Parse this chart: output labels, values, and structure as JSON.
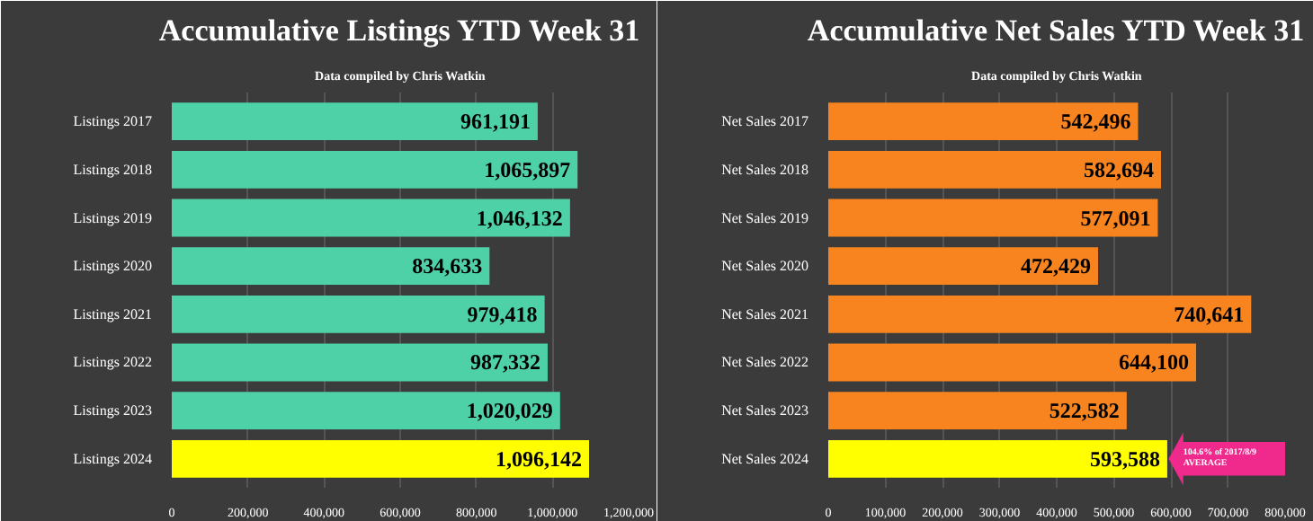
{
  "chart_data": [
    {
      "type": "bar",
      "orientation": "horizontal",
      "title": "Accumulative Listings YTD Week 31",
      "subtitle": "Data compiled by Chris Watkin",
      "categories": [
        "Listings 2017",
        "Listings 2018",
        "Listings 2019",
        "Listings 2020",
        "Listings 2021",
        "Listings 2022",
        "Listings 2023",
        "Listings 2024"
      ],
      "values": [
        961191,
        1065897,
        1046132,
        834633,
        979418,
        987332,
        1020029,
        1096142
      ],
      "colors": [
        "#4fd1a8",
        "#4fd1a8",
        "#4fd1a8",
        "#4fd1a8",
        "#4fd1a8",
        "#4fd1a8",
        "#4fd1a8",
        "#ffff00"
      ],
      "value_labels": [
        "961,191",
        "1,065,897",
        "1,046,132",
        "834,633",
        "979,418",
        "987,332",
        "1,020,029",
        "1,096,142"
      ],
      "xlim": [
        0,
        1200000
      ],
      "xticks": [
        {
          "value": 0,
          "label": "0"
        },
        {
          "value": 200000,
          "label": "200,000"
        },
        {
          "value": 400000,
          "label": "400,000"
        },
        {
          "value": 600000,
          "label": "600,000"
        },
        {
          "value": 800000,
          "label": "800,000"
        },
        {
          "value": 1000000,
          "label": "1,000,000"
        },
        {
          "value": 1200000,
          "label": "1,200,000"
        }
      ],
      "grid": "x"
    },
    {
      "type": "bar",
      "orientation": "horizontal",
      "title": "Accumulative Net Sales YTD Week 31",
      "subtitle": "Data compiled by Chris Watkin",
      "categories": [
        "Net Sales 2017",
        "Net Sales 2018",
        "Net Sales 2019",
        "Net Sales 2020",
        "Net Sales 2021",
        "Net Sales 2022",
        "Net Sales 2023",
        "Net Sales 2024"
      ],
      "values": [
        542496,
        582694,
        577091,
        472429,
        740641,
        644100,
        522582,
        593588
      ],
      "colors": [
        "#f7841e",
        "#f7841e",
        "#f7841e",
        "#f7841e",
        "#f7841e",
        "#f7841e",
        "#f7841e",
        "#ffff00"
      ],
      "value_labels": [
        "542,496",
        "582,694",
        "577,091",
        "472,429",
        "740,641",
        "644,100",
        "522,582",
        "593,588"
      ],
      "xlim": [
        0,
        800000
      ],
      "xticks": [
        {
          "value": 0,
          "label": "0"
        },
        {
          "value": 100000,
          "label": "100,000"
        },
        {
          "value": 200000,
          "label": "200,000"
        },
        {
          "value": 300000,
          "label": "300,000"
        },
        {
          "value": 400000,
          "label": "400,000"
        },
        {
          "value": 500000,
          "label": "500,000"
        },
        {
          "value": 600000,
          "label": "600,000"
        },
        {
          "value": 700000,
          "label": "700,000"
        },
        {
          "value": 800000,
          "label": "800,000"
        }
      ],
      "grid": "x",
      "annotations": [
        {
          "text": "104.6% of 2017/8/9 AVERAGE",
          "x": 593588,
          "y": "Net Sales 2024"
        }
      ]
    }
  ]
}
